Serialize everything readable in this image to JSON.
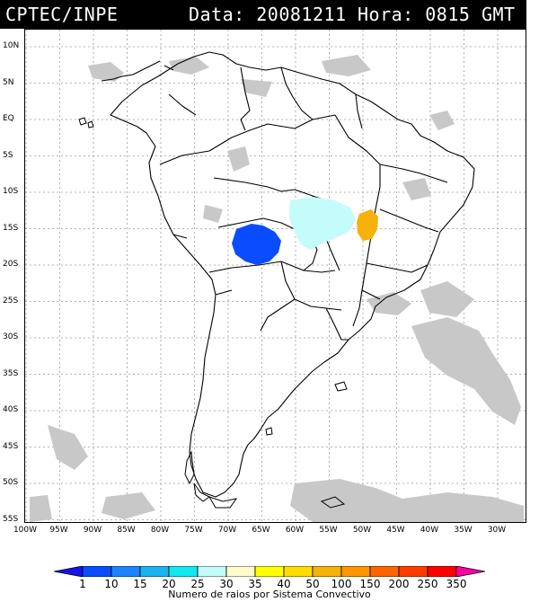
{
  "header": {
    "source": "CPTEC/INPE",
    "date_label": "Data: 20081211",
    "time_label": "Hora: 0815 GMT"
  },
  "map": {
    "lat_labels": [
      "10N",
      "5N",
      "EQ",
      "5S",
      "10S",
      "15S",
      "20S",
      "25S",
      "30S",
      "35S",
      "40S",
      "45S",
      "50S",
      "55S"
    ],
    "lon_labels": [
      "100W",
      "95W",
      "90W",
      "85W",
      "80W",
      "75W",
      "70W",
      "65W",
      "60W",
      "55W",
      "50W",
      "45W",
      "40W",
      "35W",
      "30W"
    ],
    "colors": {
      "clouds": "#c8c8c8",
      "border": "#000000",
      "grid": "#9a9a9a"
    },
    "convective_systems": [
      {
        "region": "western Bolivia / Rondonia",
        "color": "#0a4cff",
        "category": "1"
      },
      {
        "region": "Mato Grosso",
        "color": "#c4fbfb",
        "category": "25-30"
      },
      {
        "region": "Goias / Bahia",
        "color": "#f6b10a",
        "category": "50-100"
      }
    ]
  },
  "colorbar": {
    "tick_labels": [
      "1",
      "10",
      "15",
      "20",
      "25",
      "30",
      "35",
      "40",
      "50",
      "100",
      "150",
      "200",
      "250",
      "350"
    ],
    "colors": [
      "#1414e8",
      "#0a4cff",
      "#1e82ff",
      "#19b4f0",
      "#12e8f0",
      "#c4fbfb",
      "#fffbcc",
      "#ffff00",
      "#ffdc00",
      "#f6b10a",
      "#ff9600",
      "#ff6400",
      "#ff3c00",
      "#ff0000",
      "#ff00a0"
    ],
    "caption": "Numero de raios por Sistema Convectivo"
  }
}
